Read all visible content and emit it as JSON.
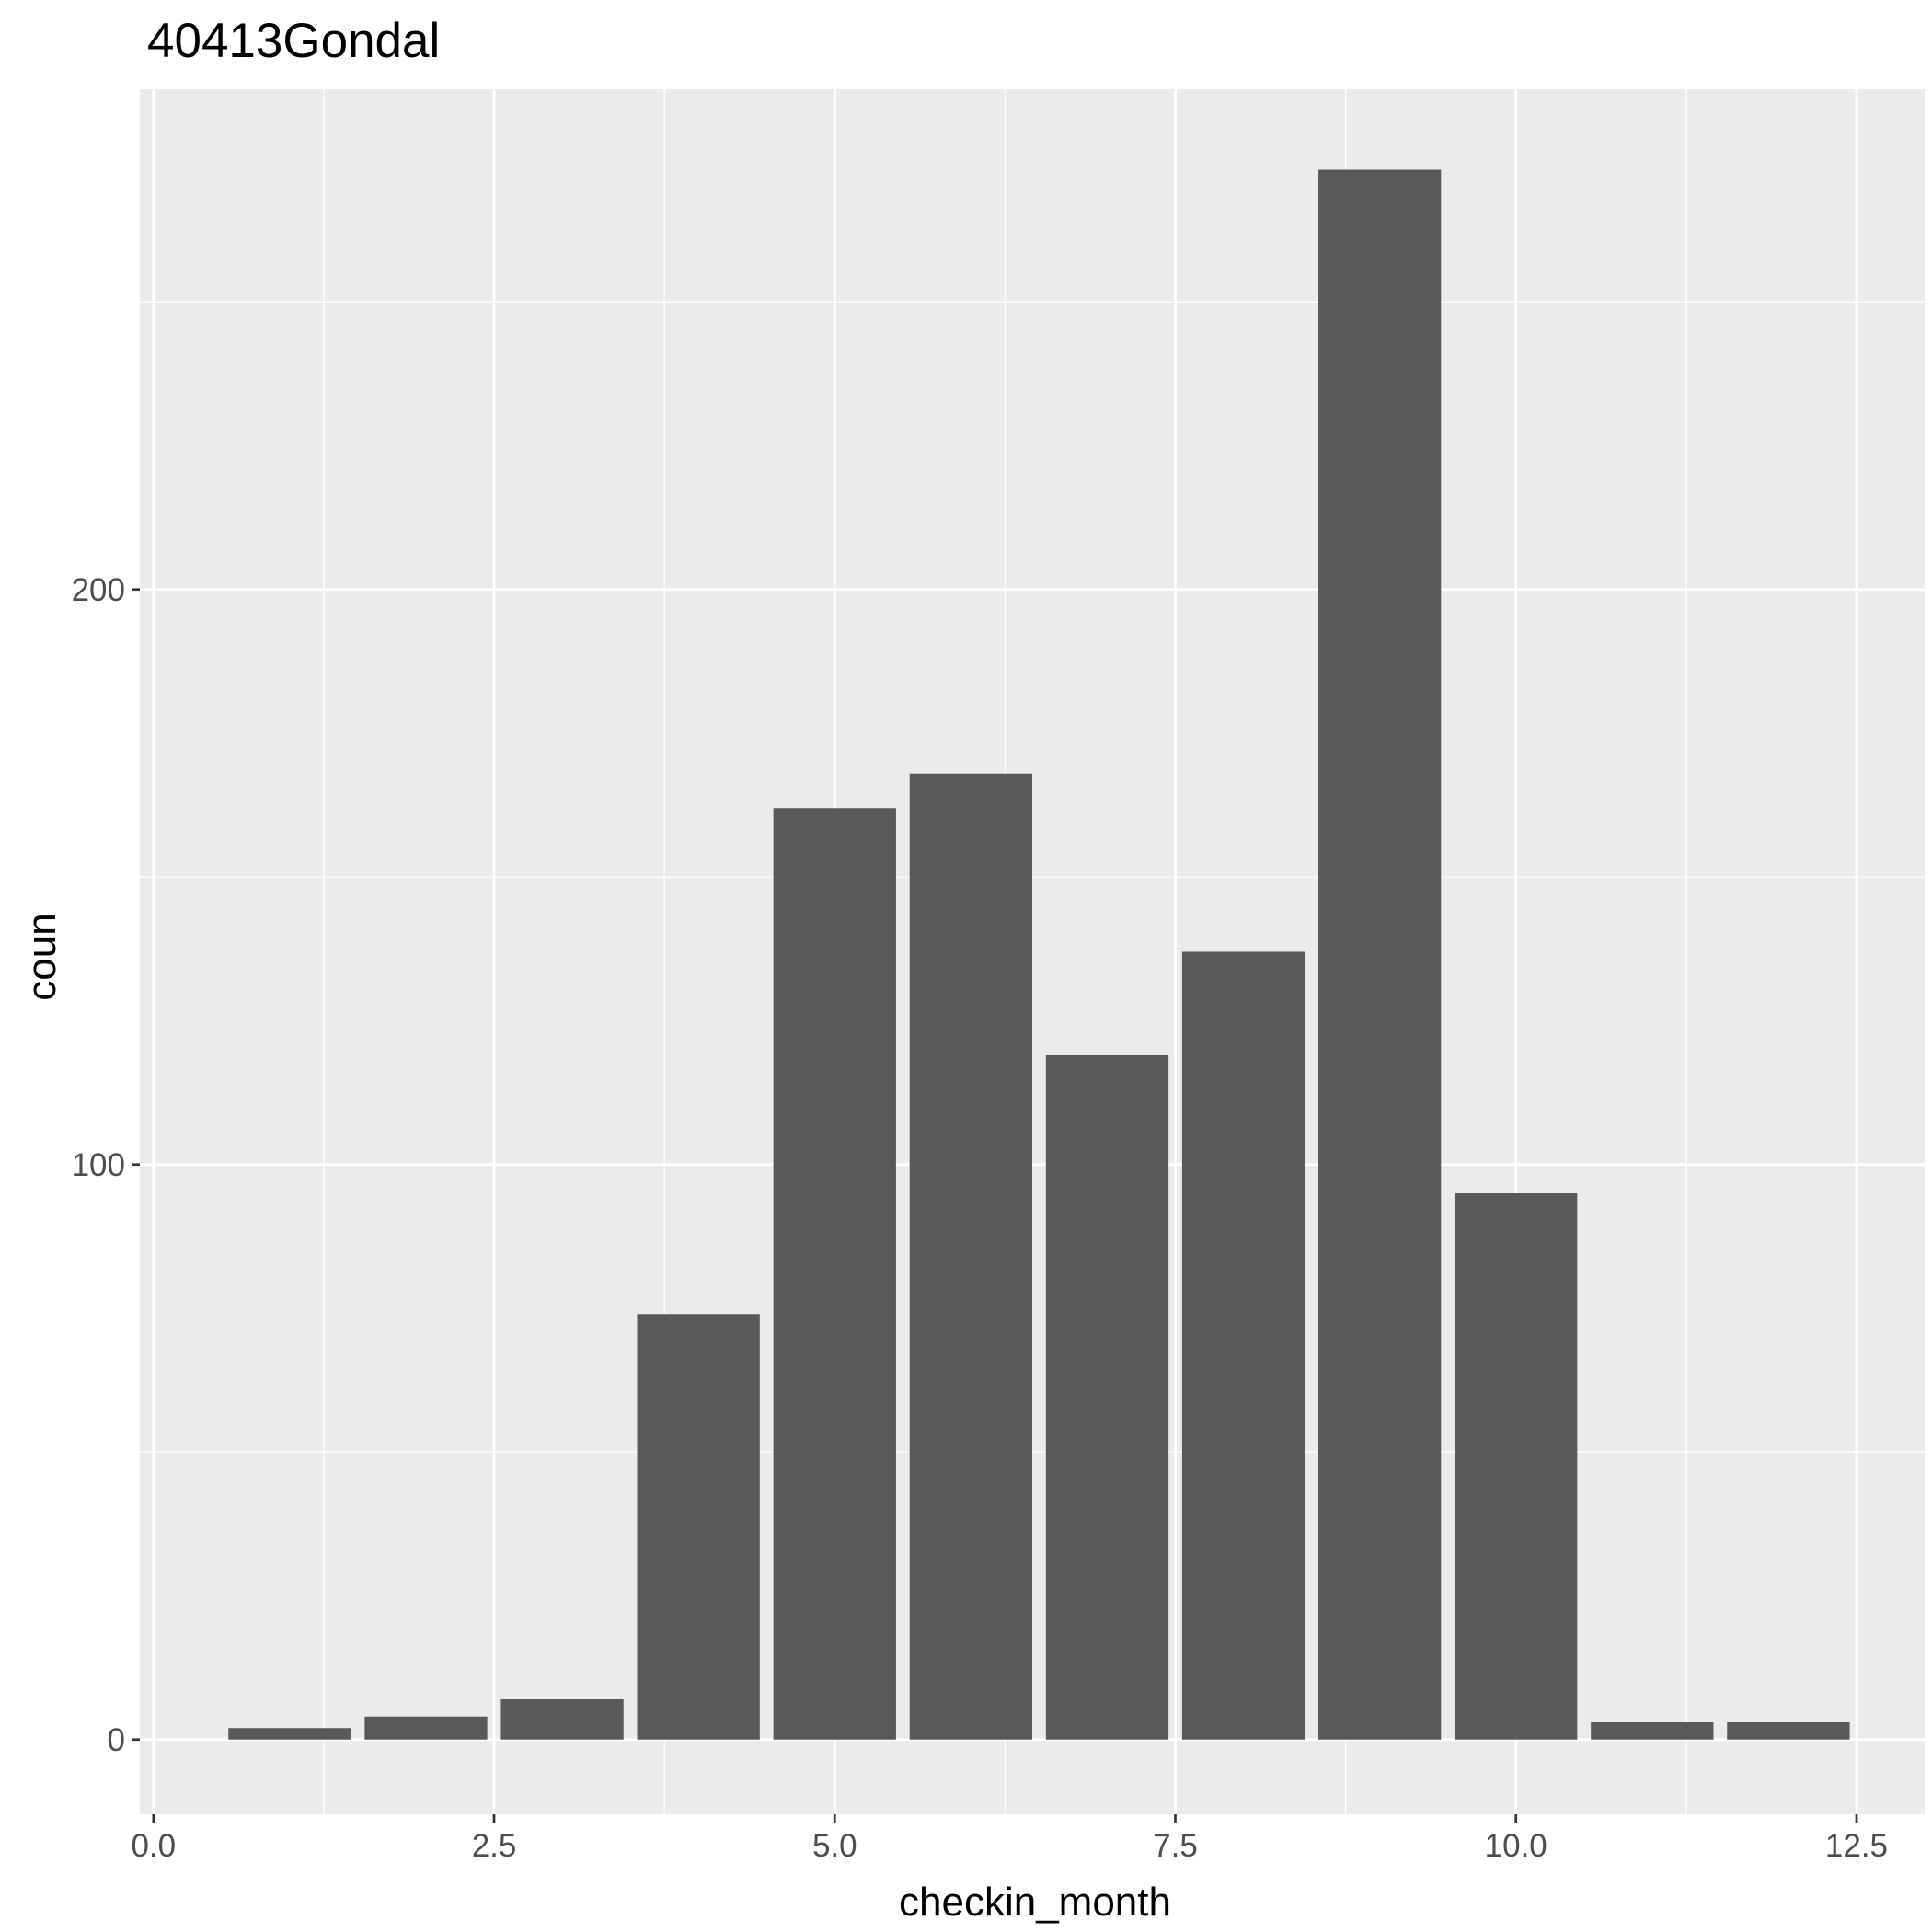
{
  "chart_data": {
    "type": "bar",
    "title": "40413Gondal",
    "xlabel": "checkin_month",
    "ylabel": "coun",
    "x": [
      1,
      2,
      3,
      4,
      5,
      6,
      7,
      8,
      9,
      10,
      11,
      12
    ],
    "values": [
      2,
      4,
      7,
      74,
      162,
      168,
      119,
      137,
      273,
      95,
      3,
      3
    ],
    "xlim": [
      -0.1,
      13.0
    ],
    "ylim": [
      -13,
      287
    ],
    "x_breaks": [
      0,
      2.5,
      5,
      7.5,
      10,
      12.5
    ],
    "x_tick_labels": [
      "0.0",
      "2.5",
      "5.0",
      "7.5",
      "10.0",
      "12.5"
    ],
    "y_breaks": [
      0,
      100,
      200
    ],
    "y_tick_labels": [
      "0",
      "100",
      "200"
    ],
    "y_minor_breaks": [
      50,
      150,
      250
    ],
    "bar_width": 0.9,
    "grid": true,
    "legend": "none",
    "colors": {
      "bar": "#595959",
      "panel": "#ebebeb",
      "grid": "#ffffff",
      "tick": "#333333",
      "tick_label": "#4d4d4d",
      "text": "#000000"
    }
  }
}
